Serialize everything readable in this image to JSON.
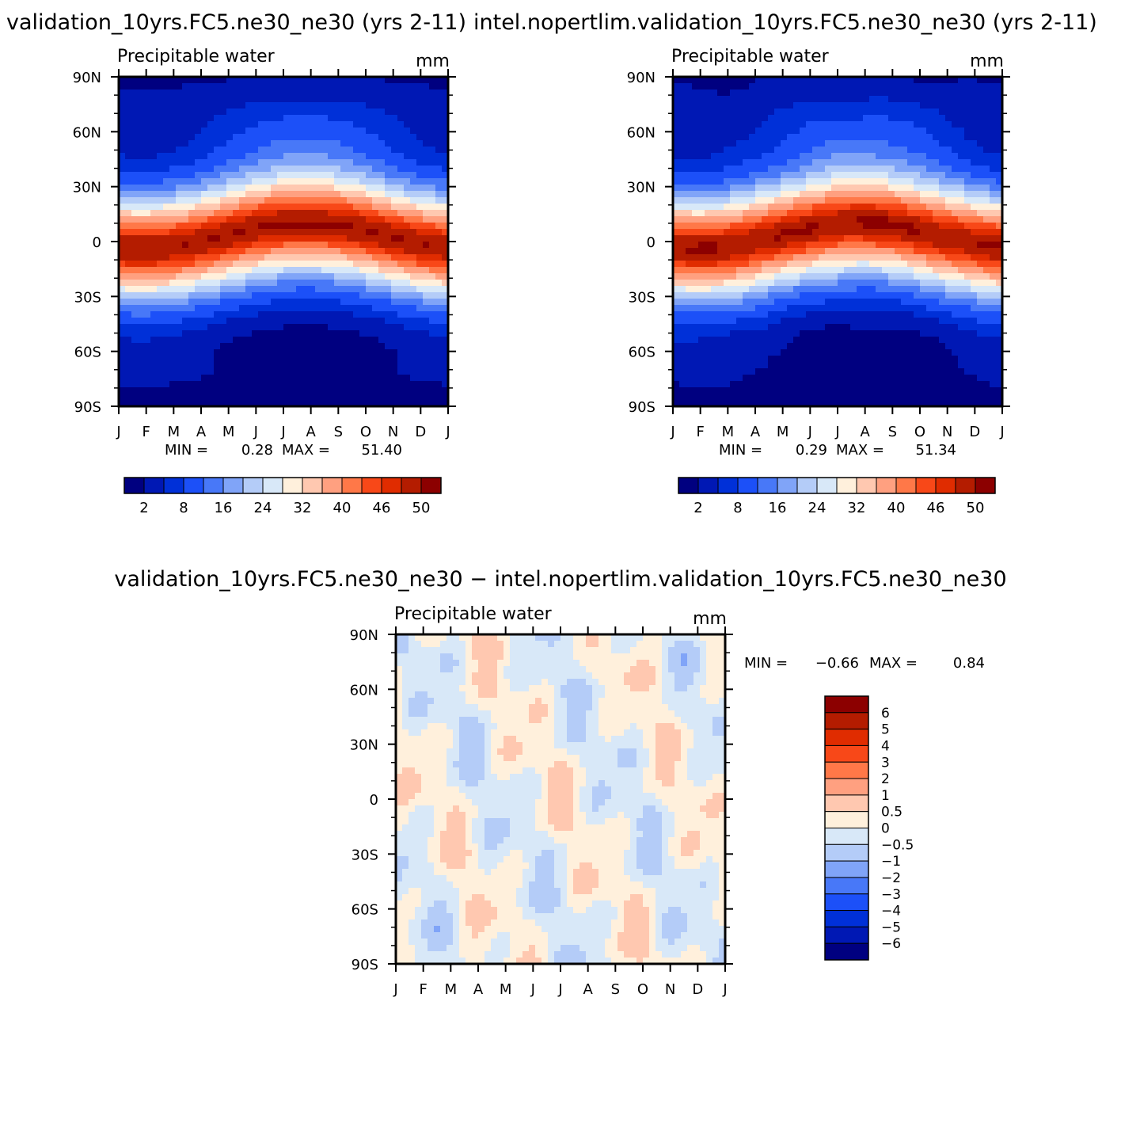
{
  "chart_data": [
    {
      "type": "heatmap",
      "title": "validation_10yrs.FC5.ne30_ne30 (yrs 2-11)",
      "subtitle": "Precipitable water",
      "units": "mm",
      "x_ticks": [
        "J",
        "F",
        "M",
        "A",
        "M",
        "J",
        "J",
        "A",
        "S",
        "O",
        "N",
        "D",
        "J"
      ],
      "y_ticks": [
        "90N",
        "60N",
        "30N",
        "0",
        "30S",
        "60S",
        "90S"
      ],
      "xlim": [
        0,
        12
      ],
      "ylim": [
        -90,
        90
      ],
      "min_label": "MIN =",
      "min_value": "0.28",
      "max_label": "MAX =",
      "max_value": "51.40",
      "colorbar": {
        "orientation": "horizontal",
        "colors": [
          "#000080",
          "#0018b4",
          "#0030d8",
          "#1c50f8",
          "#4878f8",
          "#80a4f8",
          "#b4ccf8",
          "#d8e8f8",
          "#fff0dc",
          "#ffc8b0",
          "#ffa080",
          "#ff7848",
          "#f84818",
          "#e02c00",
          "#b41c00",
          "#8c0000"
        ],
        "labels": [
          "2",
          "8",
          "16",
          "24",
          "32",
          "40",
          "46",
          "50"
        ]
      }
    },
    {
      "type": "heatmap",
      "title": "intel.nopertlim.validation_10yrs.FC5.ne30_ne30 (yrs 2-11)",
      "subtitle": "Precipitable water",
      "units": "mm",
      "x_ticks": [
        "J",
        "F",
        "M",
        "A",
        "M",
        "J",
        "J",
        "A",
        "S",
        "O",
        "N",
        "D",
        "J"
      ],
      "y_ticks": [
        "90N",
        "60N",
        "30N",
        "0",
        "30S",
        "60S",
        "90S"
      ],
      "xlim": [
        0,
        12
      ],
      "ylim": [
        -90,
        90
      ],
      "min_label": "MIN =",
      "min_value": "0.29",
      "max_label": "MAX =",
      "max_value": "51.34",
      "colorbar": {
        "orientation": "horizontal",
        "colors": [
          "#000080",
          "#0018b4",
          "#0030d8",
          "#1c50f8",
          "#4878f8",
          "#80a4f8",
          "#b4ccf8",
          "#d8e8f8",
          "#fff0dc",
          "#ffc8b0",
          "#ffa080",
          "#ff7848",
          "#f84818",
          "#e02c00",
          "#b41c00",
          "#8c0000"
        ],
        "labels": [
          "2",
          "8",
          "16",
          "24",
          "32",
          "40",
          "46",
          "50"
        ]
      }
    },
    {
      "type": "heatmap",
      "title": "validation_10yrs.FC5.ne30_ne30 − intel.nopertlim.validation_10yrs.FC5.ne30_ne30",
      "subtitle": "Precipitable water",
      "units": "mm",
      "x_ticks": [
        "J",
        "F",
        "M",
        "A",
        "M",
        "J",
        "J",
        "A",
        "S",
        "O",
        "N",
        "D",
        "J"
      ],
      "y_ticks": [
        "90N",
        "60N",
        "30N",
        "0",
        "30S",
        "60S",
        "90S"
      ],
      "xlim": [
        0,
        12
      ],
      "ylim": [
        -90,
        90
      ],
      "min_label": "MIN =",
      "min_value": "−0.66",
      "max_label": "MAX =",
      "max_value": "0.84",
      "colorbar": {
        "orientation": "vertical",
        "colors": [
          "#000080",
          "#0018b4",
          "#0030d8",
          "#1c50f8",
          "#4878f8",
          "#80a4f8",
          "#b4ccf8",
          "#d8e8f8",
          "#fff0dc",
          "#ffc8b0",
          "#ffa080",
          "#ff7848",
          "#f84818",
          "#e02c00",
          "#b41c00",
          "#8c0000"
        ],
        "labels": [
          "6",
          "5",
          "4",
          "3",
          "2",
          "1",
          "0.5",
          "0",
          "−0.5",
          "−1",
          "−2",
          "−3",
          "−4",
          "−5",
          "−6"
        ]
      }
    }
  ]
}
